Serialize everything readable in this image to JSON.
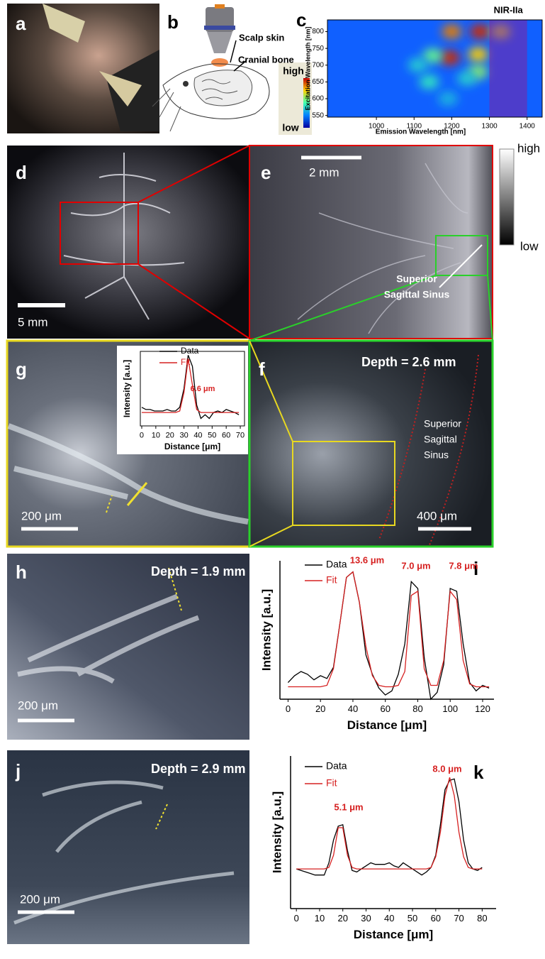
{
  "panel_letters": [
    "a",
    "b",
    "c",
    "d",
    "e",
    "f",
    "g",
    "h",
    "i",
    "j",
    "k"
  ],
  "panel_b": {
    "labels": [
      "Scalp skin",
      "Cranial bone"
    ],
    "colorbar": [
      "high",
      "low"
    ]
  },
  "panel_d": {
    "scale": "5 mm"
  },
  "panel_e": {
    "scale": "2 mm",
    "annotation": [
      "Superior",
      "Sagittal Sinus"
    ],
    "colorbar": [
      "high",
      "low"
    ]
  },
  "panel_f": {
    "depth": "Depth = 2.6 mm",
    "annotation": [
      "Superior",
      "Sagittal",
      "Sinus"
    ],
    "scale": "400 μm"
  },
  "panel_g": {
    "scale": "200 μm"
  },
  "panel_h": {
    "depth": "Depth = 1.9 mm",
    "scale": "200 μm"
  },
  "panel_j": {
    "depth": "Depth = 2.9 mm",
    "scale": "200 μm"
  },
  "chart_data": [
    {
      "type": "heatmap",
      "highlight_label": "NIR-IIa",
      "highlight": [
        1300,
        1400
      ],
      "x_label": "Emission Wavelength [nm]",
      "y_label": "Excitation Wavelength [nm]",
      "xlim": [
        870,
        1440
      ],
      "ylim": [
        545,
        835
      ],
      "xticks": [
        1000,
        1100,
        1200,
        1300,
        1400
      ],
      "yticks": [
        550,
        600,
        650,
        700,
        750,
        800
      ],
      "spots": {
        "x": [
          1200,
          1275,
          1330,
          1195,
          1270,
          1150,
          1270,
          1140,
          1240,
          1190,
          1110
        ],
        "y": [
          800,
          800,
          800,
          722,
          732,
          728,
          680,
          650,
          660,
          600,
          700
        ],
        "values": [
          0.85,
          0.95,
          0.7,
          0.95,
          0.75,
          0.55,
          0.6,
          0.45,
          0.4,
          0.35,
          0.4
        ]
      }
    },
    {
      "type": "line",
      "x_label": "Distance [μm]",
      "y_label": "Intensity [a.u.]",
      "xlim": [
        -1,
        73
      ],
      "ylim": [
        0,
        1
      ],
      "xticks": [
        0,
        10,
        20,
        30,
        40,
        50,
        60,
        70
      ],
      "annotations": [
        "6.6 μm"
      ],
      "x": [
        0,
        3,
        6,
        9,
        12,
        15,
        18,
        21,
        24,
        27,
        30,
        33,
        36,
        39,
        42,
        45,
        48,
        51,
        54,
        57,
        60,
        63,
        66,
        69
      ],
      "series": [
        {
          "name": "Data",
          "color": "#000000",
          "values": [
            0.25,
            0.22,
            0.22,
            0.2,
            0.2,
            0.2,
            0.22,
            0.2,
            0.2,
            0.25,
            0.5,
            0.95,
            0.8,
            0.28,
            0.1,
            0.15,
            0.1,
            0.18,
            0.2,
            0.18,
            0.22,
            0.2,
            0.18,
            0.15
          ]
        },
        {
          "name": "Fit",
          "color": "#d62020",
          "values": [
            0.18,
            0.18,
            0.18,
            0.18,
            0.18,
            0.18,
            0.18,
            0.18,
            0.18,
            0.2,
            0.45,
            0.9,
            0.55,
            0.22,
            0.18,
            0.18,
            0.18,
            0.18,
            0.18,
            0.18,
            0.18,
            0.18,
            0.18,
            0.18
          ]
        }
      ]
    },
    {
      "type": "line",
      "x_label": "Distance [μm]",
      "y_label": "Intensity [a.u.]",
      "xlim": [
        -5,
        127
      ],
      "ylim": [
        0,
        1
      ],
      "xticks": [
        0,
        20,
        40,
        60,
        80,
        100,
        120
      ],
      "annotations": [
        "13.6 μm",
        "7.0 μm",
        "7.8 μm"
      ],
      "x": [
        0,
        4,
        8,
        12,
        16,
        20,
        24,
        28,
        32,
        36,
        40,
        44,
        48,
        52,
        56,
        60,
        64,
        68,
        72,
        76,
        80,
        84,
        88,
        92,
        96,
        100,
        104,
        108,
        112,
        116,
        120,
        124
      ],
      "series": [
        {
          "name": "Data",
          "color": "#000000",
          "values": [
            0.12,
            0.17,
            0.2,
            0.18,
            0.14,
            0.17,
            0.15,
            0.23,
            0.55,
            0.88,
            0.92,
            0.7,
            0.32,
            0.18,
            0.08,
            0.03,
            0.06,
            0.18,
            0.4,
            0.85,
            0.8,
            0.3,
            0.0,
            0.05,
            0.25,
            0.8,
            0.78,
            0.4,
            0.12,
            0.06,
            0.1,
            0.08
          ]
        },
        {
          "name": "Fit",
          "color": "#d62020",
          "values": [
            0.09,
            0.09,
            0.09,
            0.09,
            0.09,
            0.09,
            0.1,
            0.22,
            0.55,
            0.88,
            0.92,
            0.7,
            0.38,
            0.17,
            0.1,
            0.09,
            0.09,
            0.1,
            0.2,
            0.75,
            0.78,
            0.22,
            0.1,
            0.1,
            0.28,
            0.78,
            0.72,
            0.28,
            0.11,
            0.09,
            0.09,
            0.09
          ]
        }
      ]
    },
    {
      "type": "line",
      "x_label": "Distance [μm]",
      "y_label": "Intensity [a.u.]",
      "xlim": [
        -2.5,
        86
      ],
      "ylim": [
        0,
        1
      ],
      "xticks": [
        0,
        10,
        20,
        30,
        40,
        50,
        60,
        70,
        80
      ],
      "annotations": [
        "5.1 μm",
        "8.0 μm"
      ],
      "x": [
        0,
        2,
        4,
        6,
        8,
        10,
        12,
        14,
        16,
        18,
        20,
        22,
        24,
        26,
        28,
        30,
        32,
        34,
        36,
        38,
        40,
        42,
        44,
        46,
        48,
        50,
        52,
        54,
        56,
        58,
        60,
        62,
        64,
        66,
        68,
        70,
        72,
        74,
        76,
        78,
        80
      ],
      "series": [
        {
          "name": "Data",
          "color": "#000000",
          "values": [
            0.26,
            0.25,
            0.24,
            0.23,
            0.22,
            0.22,
            0.22,
            0.3,
            0.45,
            0.54,
            0.55,
            0.38,
            0.25,
            0.24,
            0.26,
            0.28,
            0.3,
            0.29,
            0.29,
            0.29,
            0.3,
            0.28,
            0.27,
            0.3,
            0.28,
            0.26,
            0.24,
            0.22,
            0.24,
            0.27,
            0.35,
            0.55,
            0.78,
            0.84,
            0.85,
            0.7,
            0.45,
            0.3,
            0.26,
            0.25,
            0.27
          ]
        },
        {
          "name": "Fit",
          "color": "#d62020",
          "values": [
            0.26,
            0.26,
            0.26,
            0.26,
            0.26,
            0.26,
            0.26,
            0.27,
            0.35,
            0.53,
            0.53,
            0.35,
            0.27,
            0.26,
            0.26,
            0.26,
            0.26,
            0.26,
            0.26,
            0.26,
            0.26,
            0.26,
            0.26,
            0.26,
            0.26,
            0.26,
            0.26,
            0.26,
            0.26,
            0.27,
            0.34,
            0.5,
            0.74,
            0.86,
            0.74,
            0.5,
            0.34,
            0.27,
            0.26,
            0.26,
            0.26
          ]
        }
      ]
    }
  ]
}
